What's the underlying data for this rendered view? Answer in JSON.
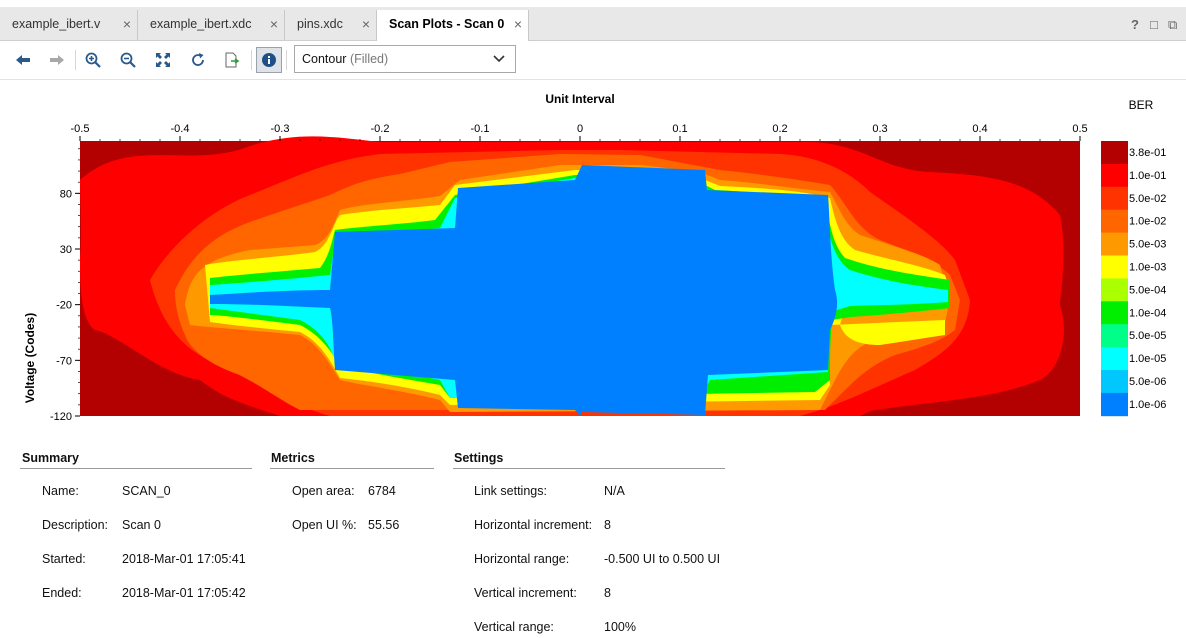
{
  "tabs": [
    {
      "label": "example_ibert.v",
      "active": false
    },
    {
      "label": "example_ibert.xdc",
      "active": false
    },
    {
      "label": "pins.xdc",
      "active": false
    },
    {
      "label": "Scan Plots - Scan 0",
      "active": true
    }
  ],
  "window_controls": {
    "help": "?",
    "restore": "□",
    "float": "⧉"
  },
  "toolbar": {
    "icons": [
      "back-icon",
      "forward-icon",
      "zoom-in-icon",
      "zoom-out-icon",
      "fit-icon",
      "refresh-icon",
      "export-icon",
      "info-icon"
    ],
    "plot_type_value": "Contour",
    "plot_type_suffix": "(Filled)"
  },
  "chart_data": {
    "type": "heatmap",
    "title": "Unit Interval",
    "xlabel": "Unit Interval",
    "ylabel": "Voltage (Codes)",
    "x_ticks": [
      "-0.5",
      "-0.4",
      "-0.3",
      "-0.2",
      "-0.1",
      "0",
      "0.1",
      "0.2",
      "0.3",
      "0.4",
      "0.5"
    ],
    "x_tick_values": [
      -0.5,
      -0.4,
      -0.3,
      -0.2,
      -0.1,
      0,
      0.1,
      0.2,
      0.3,
      0.4,
      0.5
    ],
    "y_ticks": [
      "80",
      "30",
      "-20",
      "-70",
      "-120"
    ],
    "y_tick_values": [
      80,
      30,
      -20,
      -70,
      -120
    ],
    "xlim": [
      -0.5,
      0.5
    ],
    "ylim": [
      -120,
      127
    ],
    "legend_title": "BER",
    "legend": [
      {
        "label": "3.8e-01",
        "color": "#b30000"
      },
      {
        "label": "1.0e-01",
        "color": "#ff0000"
      },
      {
        "label": "5.0e-02",
        "color": "#ff3300"
      },
      {
        "label": "1.0e-02",
        "color": "#ff6600"
      },
      {
        "label": "5.0e-03",
        "color": "#ff9900"
      },
      {
        "label": "1.0e-03",
        "color": "#ffff00"
      },
      {
        "label": "5.0e-04",
        "color": "#aaff00"
      },
      {
        "label": "1.0e-04",
        "color": "#00ee00"
      },
      {
        "label": "5.0e-05",
        "color": "#00ff88"
      },
      {
        "label": "1.0e-05",
        "color": "#00ffff"
      },
      {
        "label": "5.0e-06",
        "color": "#00c8ff"
      },
      {
        "label": "1.0e-06",
        "color": "#0080ff"
      }
    ],
    "eye_open_region": {
      "x_range": [
        -0.125,
        0.125
      ],
      "y_range": [
        -110,
        110
      ],
      "ber_level": "1.0e-06"
    }
  },
  "summary": {
    "title": "Summary",
    "name_label": "Name:",
    "name": "SCAN_0",
    "description_label": "Description:",
    "description": "Scan 0",
    "started_label": "Started:",
    "started": "2018-Mar-01 17:05:41",
    "ended_label": "Ended:",
    "ended": "2018-Mar-01 17:05:42"
  },
  "metrics": {
    "title": "Metrics",
    "open_area_label": "Open area:",
    "open_area": "6784",
    "open_ui_label": "Open UI %:",
    "open_ui": "55.56"
  },
  "settings": {
    "title": "Settings",
    "link_label": "Link settings:",
    "link": "N/A",
    "h_inc_label": "Horizontal increment:",
    "h_inc": "8",
    "h_range_label": "Horizontal range:",
    "h_range": "-0.500 UI to 0.500 UI",
    "v_inc_label": "Vertical increment:",
    "v_inc": "8",
    "v_range_label": "Vertical range:",
    "v_range": "100%"
  }
}
